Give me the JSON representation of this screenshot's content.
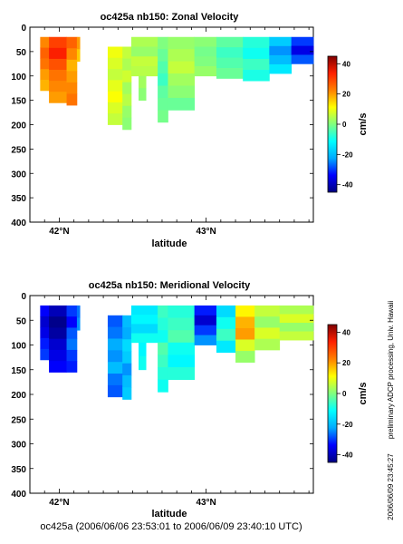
{
  "caption": "oc425a (2006/06/06 23:53:01 to 2006/06/09 23:40:10 UTC)",
  "side_note": "preliminary ADCP processing,   Univ. Hawaii",
  "side_date": "2006/06/09 23:45:27",
  "colormap": {
    "stops": [
      "#000080",
      "#0000ff",
      "#00aaff",
      "#00ffff",
      "#80ff80",
      "#ffff00",
      "#ff8000",
      "#ff2000",
      "#800000"
    ]
  },
  "chart_data": [
    {
      "type": "heatmap",
      "title": "oc425a nb150: Zonal Velocity",
      "xlabel": "latitude",
      "ylabel": "",
      "colorbar_label": "cm/s",
      "xlim": [
        41.8,
        43.73
      ],
      "ylim": [
        400,
        0
      ],
      "xticks": [
        42,
        43
      ],
      "xtick_labels": [
        "42°N",
        "43°N"
      ],
      "yticks": [
        0,
        50,
        100,
        150,
        200,
        250,
        300,
        350,
        400
      ],
      "ytick_labels": [
        "0",
        "50",
        "100",
        "150",
        "200",
        "250",
        "300",
        "350",
        "400"
      ],
      "clim": [
        -45,
        45
      ],
      "colorbar_ticks": [
        40,
        20,
        0,
        -20,
        -40
      ],
      "colorbar_tick_labels": [
        "40",
        "20",
        "0",
        "-20",
        "-40"
      ],
      "columns": [
        {
          "lat_start": 41.87,
          "lat_end": 41.93,
          "depth_top": 20,
          "depth_bottom": 130,
          "values": [
            22,
            26,
            24,
            20,
            18
          ]
        },
        {
          "lat_start": 41.93,
          "lat_end": 42.05,
          "depth_top": 20,
          "depth_bottom": 155,
          "values": [
            30,
            34,
            28,
            24,
            22,
            20
          ]
        },
        {
          "lat_start": 42.05,
          "lat_end": 42.12,
          "depth_top": 20,
          "depth_bottom": 160,
          "values": [
            26,
            22,
            18,
            20,
            22,
            24
          ]
        },
        {
          "lat_start": 42.12,
          "lat_end": 42.14,
          "depth_top": 20,
          "depth_bottom": 70,
          "values": [
            20,
            16
          ]
        },
        {
          "lat_start": 42.33,
          "lat_end": 42.43,
          "depth_top": 40,
          "depth_bottom": 200,
          "values": [
            10,
            8,
            6,
            9,
            11,
            8,
            6
          ]
        },
        {
          "lat_start": 42.43,
          "lat_end": 42.49,
          "depth_top": 40,
          "depth_bottom": 210,
          "values": [
            6,
            4,
            7,
            3,
            5,
            2,
            1
          ]
        },
        {
          "lat_start": 42.49,
          "lat_end": 42.67,
          "depth_top": 20,
          "depth_bottom": 100,
          "values": [
            4,
            2,
            6,
            5
          ]
        },
        {
          "lat_start": 42.54,
          "lat_end": 42.59,
          "depth_top": 100,
          "depth_bottom": 150,
          "values": [
            3,
            1
          ]
        },
        {
          "lat_start": 42.67,
          "lat_end": 42.74,
          "depth_top": 20,
          "depth_bottom": 195,
          "values": [
            0,
            -2,
            -4,
            -6,
            -3,
            -2,
            -1
          ]
        },
        {
          "lat_start": 42.74,
          "lat_end": 42.92,
          "depth_top": 20,
          "depth_bottom": 170,
          "values": [
            2,
            4,
            6,
            3,
            1,
            -2
          ]
        },
        {
          "lat_start": 42.92,
          "lat_end": 43.07,
          "depth_top": 20,
          "depth_bottom": 100,
          "values": [
            1,
            -1,
            0,
            2
          ]
        },
        {
          "lat_start": 43.07,
          "lat_end": 43.25,
          "depth_top": 20,
          "depth_bottom": 105,
          "values": [
            -3,
            -6,
            -4,
            -2
          ]
        },
        {
          "lat_start": 43.25,
          "lat_end": 43.43,
          "depth_top": 20,
          "depth_bottom": 110,
          "values": [
            -8,
            -10,
            -6,
            -9
          ]
        },
        {
          "lat_start": 43.43,
          "lat_end": 43.58,
          "depth_top": 20,
          "depth_bottom": 95,
          "values": [
            -18,
            -24,
            -20,
            -14
          ]
        },
        {
          "lat_start": 43.58,
          "lat_end": 43.73,
          "depth_top": 20,
          "depth_bottom": 75,
          "values": [
            -30,
            -36,
            -28
          ]
        }
      ]
    },
    {
      "type": "heatmap",
      "title": "oc425a nb150: Meridional Velocity",
      "xlabel": "latitude",
      "ylabel": "",
      "colorbar_label": "cm/s",
      "xlim": [
        41.8,
        43.73
      ],
      "ylim": [
        400,
        0
      ],
      "xticks": [
        42,
        43
      ],
      "xtick_labels": [
        "42°N",
        "43°N"
      ],
      "yticks": [
        0,
        50,
        100,
        150,
        200,
        250,
        300,
        350,
        400
      ],
      "ytick_labels": [
        "0",
        "50",
        "100",
        "150",
        "200",
        "250",
        "300",
        "350",
        "400"
      ],
      "clim": [
        -45,
        45
      ],
      "colorbar_ticks": [
        40,
        20,
        0,
        -20,
        -40
      ],
      "colorbar_tick_labels": [
        "40",
        "20",
        "0",
        "-20",
        "-40"
      ],
      "columns": [
        {
          "lat_start": 41.87,
          "lat_end": 41.93,
          "depth_top": 20,
          "depth_bottom": 130,
          "values": [
            -34,
            -38,
            -36,
            -32,
            -30
          ]
        },
        {
          "lat_start": 41.93,
          "lat_end": 42.05,
          "depth_top": 20,
          "depth_bottom": 155,
          "values": [
            -40,
            -44,
            -42,
            -38,
            -36,
            -34
          ]
        },
        {
          "lat_start": 42.05,
          "lat_end": 42.12,
          "depth_top": 20,
          "depth_bottom": 155,
          "values": [
            -30,
            -34,
            -28,
            -26,
            -30,
            -32
          ]
        },
        {
          "lat_start": 42.12,
          "lat_end": 42.14,
          "depth_top": 20,
          "depth_bottom": 70,
          "values": [
            -26,
            -24
          ]
        },
        {
          "lat_start": 42.33,
          "lat_end": 42.43,
          "depth_top": 40,
          "depth_bottom": 205,
          "values": [
            -28,
            -26,
            -22,
            -24,
            -20,
            -26,
            -28
          ]
        },
        {
          "lat_start": 42.43,
          "lat_end": 42.49,
          "depth_top": 40,
          "depth_bottom": 210,
          "values": [
            -20,
            -22,
            -16,
            -18,
            -24,
            -20,
            -18
          ]
        },
        {
          "lat_start": 42.49,
          "lat_end": 42.67,
          "depth_top": 20,
          "depth_bottom": 95,
          "values": [
            -14,
            -12,
            -16,
            -10
          ]
        },
        {
          "lat_start": 42.54,
          "lat_end": 42.59,
          "depth_top": 95,
          "depth_bottom": 150,
          "values": [
            -12,
            -10
          ]
        },
        {
          "lat_start": 42.67,
          "lat_end": 42.74,
          "depth_top": 20,
          "depth_bottom": 195,
          "values": [
            -6,
            -8,
            -10,
            -4,
            -6,
            -8,
            -10
          ]
        },
        {
          "lat_start": 42.74,
          "lat_end": 42.92,
          "depth_top": 20,
          "depth_bottom": 170,
          "values": [
            -8,
            -6,
            -4,
            -10,
            -12,
            -8
          ]
        },
        {
          "lat_start": 42.92,
          "lat_end": 43.07,
          "depth_top": 20,
          "depth_bottom": 100,
          "values": [
            -32,
            -38,
            -30,
            -24
          ]
        },
        {
          "lat_start": 43.07,
          "lat_end": 43.2,
          "depth_top": 20,
          "depth_bottom": 115,
          "values": [
            -16,
            -10,
            -6,
            -14
          ]
        },
        {
          "lat_start": 43.2,
          "lat_end": 43.33,
          "depth_top": 20,
          "depth_bottom": 135,
          "values": [
            12,
            18,
            20,
            8,
            2
          ]
        },
        {
          "lat_start": 43.33,
          "lat_end": 43.5,
          "depth_top": 20,
          "depth_bottom": 110,
          "values": [
            6,
            2,
            8,
            4
          ]
        },
        {
          "lat_start": 43.5,
          "lat_end": 43.73,
          "depth_top": 20,
          "depth_bottom": 90,
          "values": [
            4,
            8,
            2,
            6
          ]
        }
      ]
    }
  ]
}
